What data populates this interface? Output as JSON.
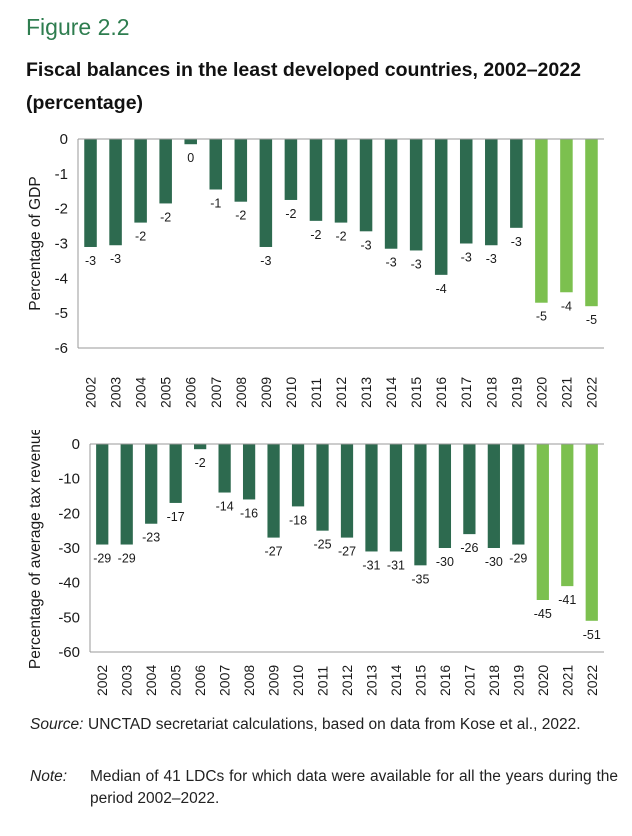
{
  "figure_label": "Figure 2.2",
  "title": "Fiscal balances in the least developed countries, 2002–2022",
  "subtitle": "(percentage)",
  "source": {
    "label": "Source:",
    "text": "UNCTAD secretariat calculations, based on data from Kose et al., 2022."
  },
  "note": {
    "label": "Note:",
    "text": "Median of 41 LDCs for which data were available for all the years during the period 2002–2022."
  },
  "colors": {
    "dark_bar": "#2d6a4f",
    "light_bar": "#7cc04f",
    "axis": "#999999"
  },
  "chart_data": [
    {
      "type": "bar",
      "ylabel": "Percentage of GDP",
      "ylim": [
        -6,
        0
      ],
      "yticks": [
        0,
        -1,
        -2,
        -3,
        -4,
        -5,
        -6
      ],
      "categories": [
        "2002",
        "2003",
        "2004",
        "2005",
        "2006",
        "2007",
        "2008",
        "2009",
        "2010",
        "2011",
        "2012",
        "2013",
        "2014",
        "2015",
        "2016",
        "2017",
        "2018",
        "2019",
        "2020",
        "2021",
        "2022"
      ],
      "values": [
        -3.1,
        -3.05,
        -2.4,
        -1.85,
        -0.15,
        -1.45,
        -1.8,
        -3.1,
        -1.75,
        -2.35,
        -2.4,
        -2.65,
        -3.15,
        -3.2,
        -3.9,
        -3.0,
        -3.05,
        -2.55,
        -4.7,
        -4.4,
        -4.8
      ],
      "data_labels": [
        "-3",
        "-3",
        "-2",
        "-2",
        "0",
        "-1",
        "-2",
        "-3",
        "-2",
        "-2",
        "-2",
        "-3",
        "-3",
        "-3",
        "-4",
        "-3",
        "-3",
        "-3",
        "-5",
        "-4",
        "-5"
      ],
      "highlight_from_index": 18
    },
    {
      "type": "bar",
      "ylabel": "Percentage of average tax revenue",
      "ylim": [
        -60,
        0
      ],
      "yticks": [
        0,
        -10,
        -20,
        -30,
        -40,
        -50,
        -60
      ],
      "categories": [
        "2002",
        "2003",
        "2004",
        "2005",
        "2006",
        "2007",
        "2008",
        "2009",
        "2010",
        "2011",
        "2012",
        "2013",
        "2014",
        "2015",
        "2016",
        "2017",
        "2018",
        "2019",
        "2020",
        "2021",
        "2022"
      ],
      "values": [
        -29,
        -29,
        -23,
        -17,
        -1.5,
        -14,
        -16,
        -27,
        -18,
        -25,
        -27,
        -31,
        -31,
        -35,
        -30,
        -26,
        -30,
        -29,
        -45,
        -41,
        -51
      ],
      "data_labels": [
        "-29",
        "-29",
        "-23",
        "-17",
        "-2",
        "-14",
        "-16",
        "-27",
        "-18",
        "-25",
        "-27",
        "-31",
        "-31",
        "-35",
        "-30",
        "-26",
        "-30",
        "-29",
        "-45",
        "-41",
        "-51"
      ],
      "highlight_from_index": 18
    }
  ]
}
